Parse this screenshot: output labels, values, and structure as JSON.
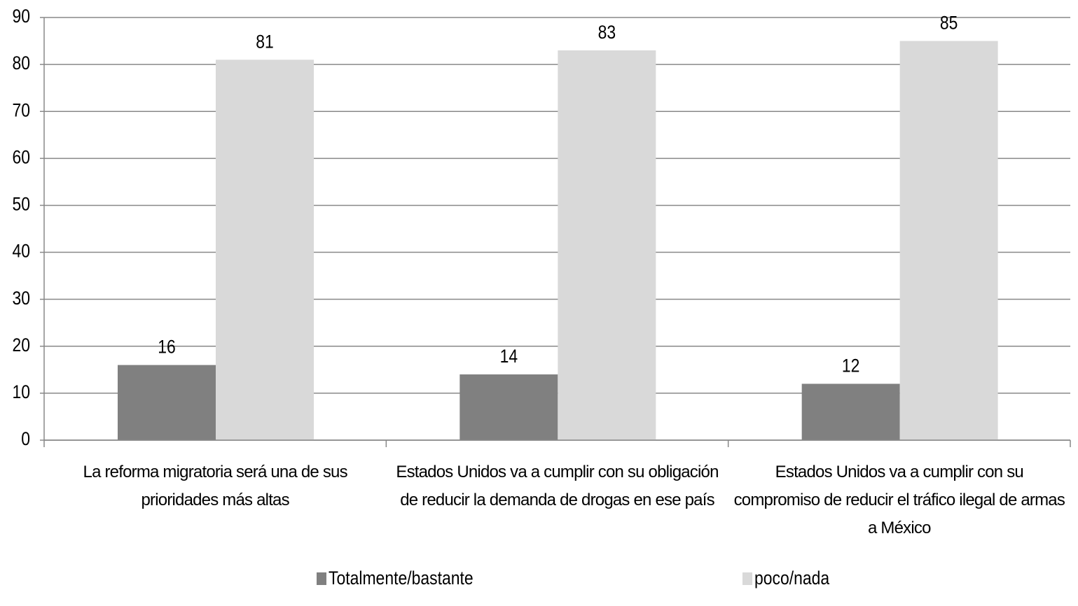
{
  "chart_data": {
    "type": "bar",
    "categories": [
      "La reforma migratoria será una de sus prioridades más altas",
      "Estados Unidos va a cumplir con su obligación de reducir la demanda de drogas en ese país",
      "Estados Unidos va a cumplir con su compromiso de reducir el tráfico ilegal de armas a México"
    ],
    "series": [
      {
        "name": "Totalmente/bastante",
        "color": "#808080",
        "values": [
          16,
          14,
          12
        ]
      },
      {
        "name": "poco/nada",
        "color": "#d9d9d9",
        "values": [
          81,
          83,
          85
        ]
      }
    ],
    "ylim": [
      0,
      90
    ],
    "yticks": [
      0,
      10,
      20,
      30,
      40,
      50,
      60,
      70,
      80,
      90
    ],
    "grid": true,
    "legend": "bottom"
  }
}
